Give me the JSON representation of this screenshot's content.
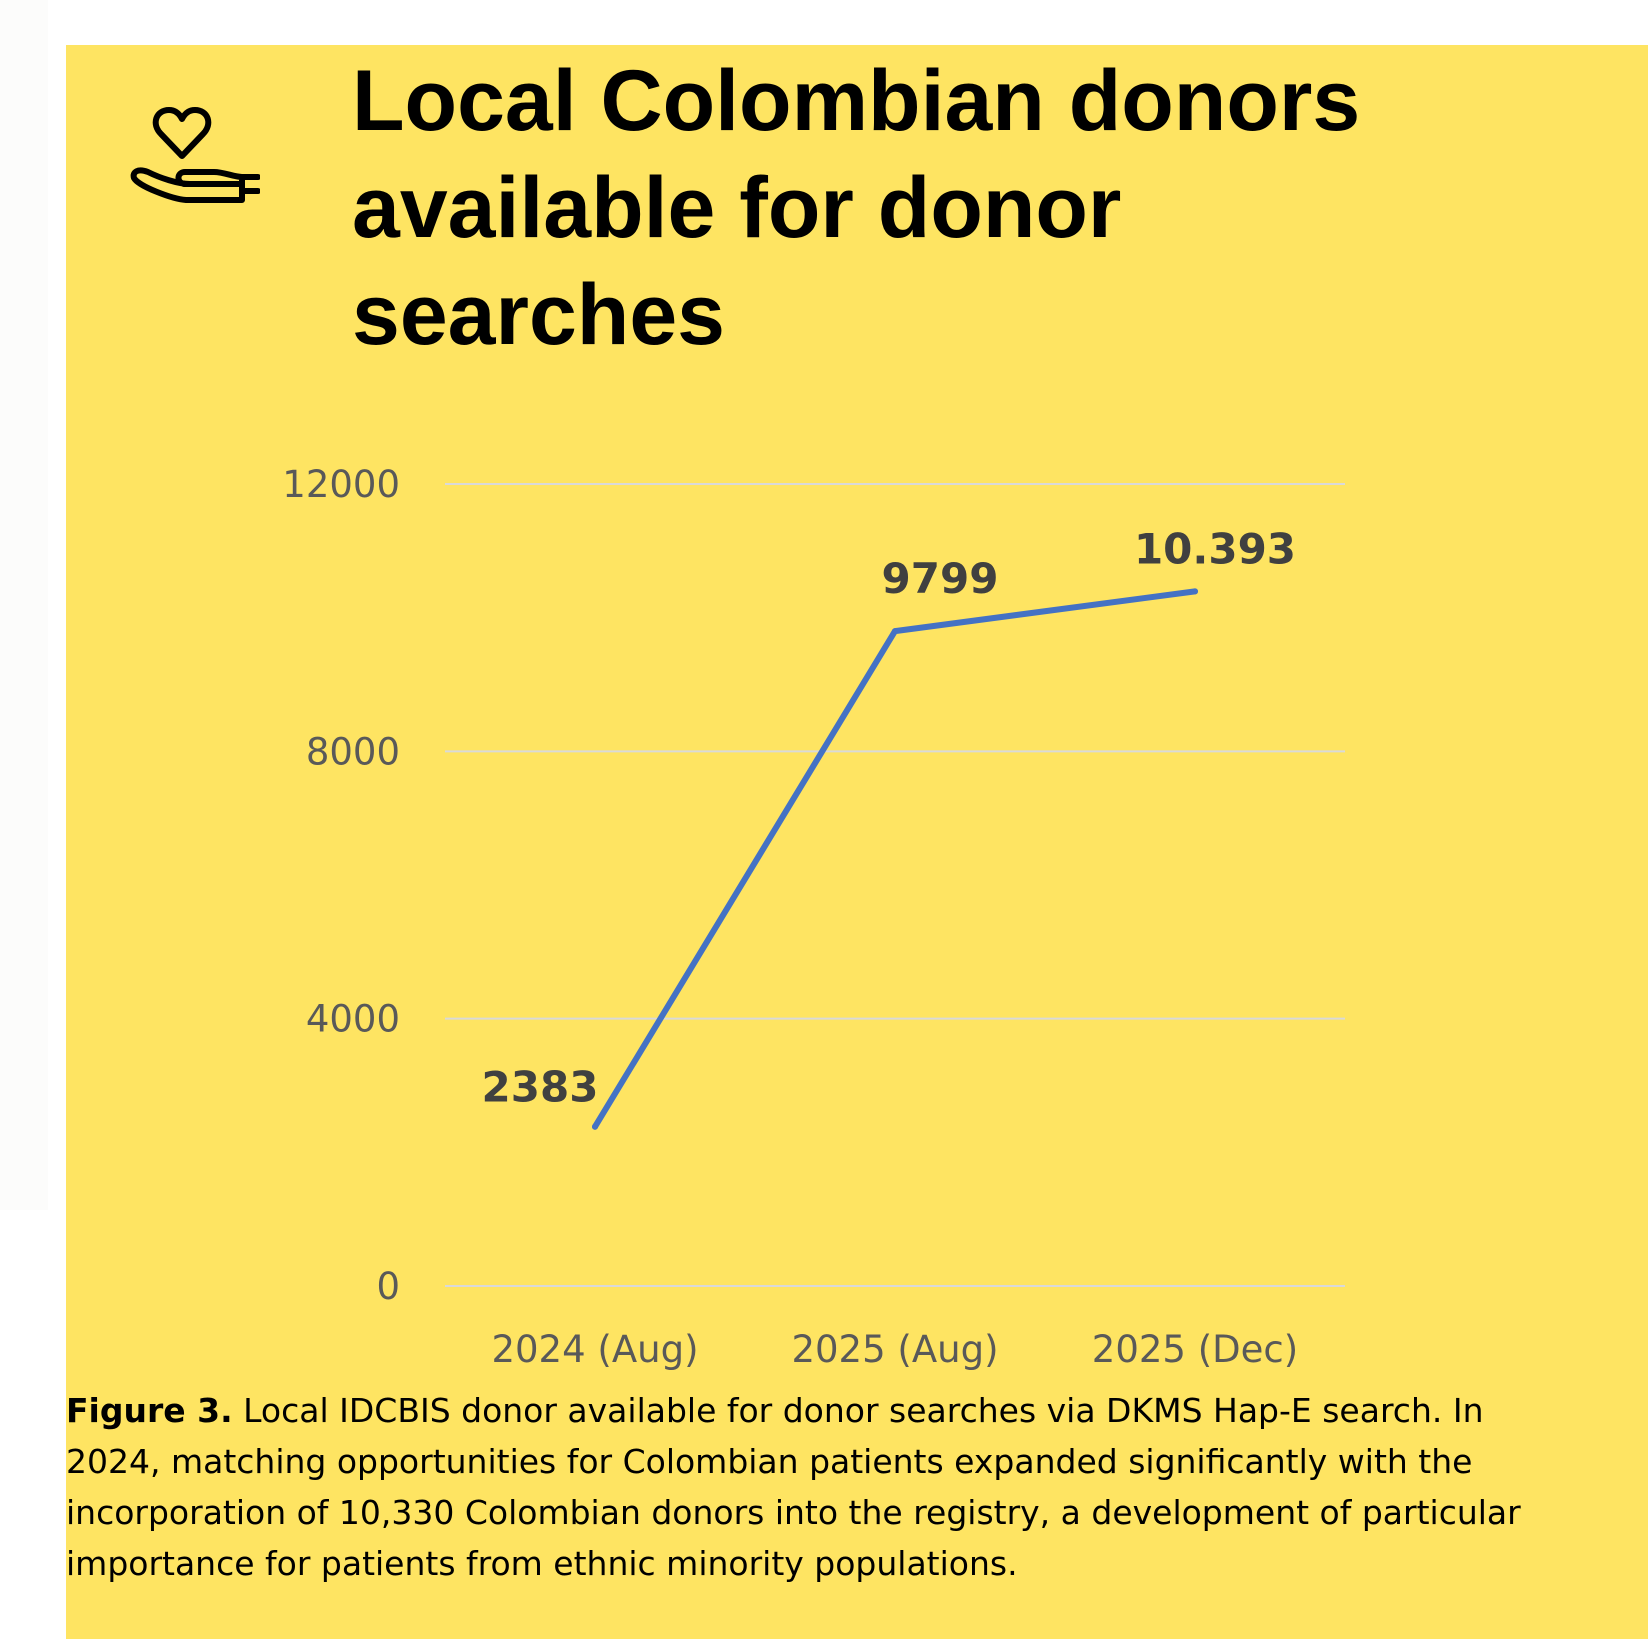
{
  "figure": {
    "title": "Local Colombian donors available for donor searches",
    "icon": "hand-heart-icon",
    "caption_label": "Figure 3.",
    "caption_text": " Local IDCBIS donor available for donor searches via DKMS Hap-E search. In 2024, matching opportunities for Colombian patients expanded significantly with the incorporation of 10,330 Colombian donors into the registry, a development of particular importance for patients from ethnic minority populations.",
    "colors": {
      "background": "#fee462",
      "line": "#4472c4",
      "gridline": "#d9d9d9",
      "tick_text": "#595959",
      "data_label": "#404040"
    }
  },
  "chart_data": {
    "type": "line",
    "title": "Local Colombian donors available for donor searches",
    "categories": [
      "2024 (Aug)",
      "2025 (Aug)",
      "2025 (Dec)"
    ],
    "series": [
      {
        "values": [
          2383,
          9799,
          10393
        ],
        "data_labels": [
          "2383",
          "9799",
          "10.393"
        ]
      }
    ],
    "ylim": [
      0,
      12000
    ],
    "yticks": [
      0,
      4000,
      8000,
      12000
    ],
    "ytick_labels": [
      "0",
      "4000",
      "8000",
      "12000"
    ],
    "xlabel": "",
    "ylabel": "",
    "grid": true,
    "legend": "none"
  }
}
